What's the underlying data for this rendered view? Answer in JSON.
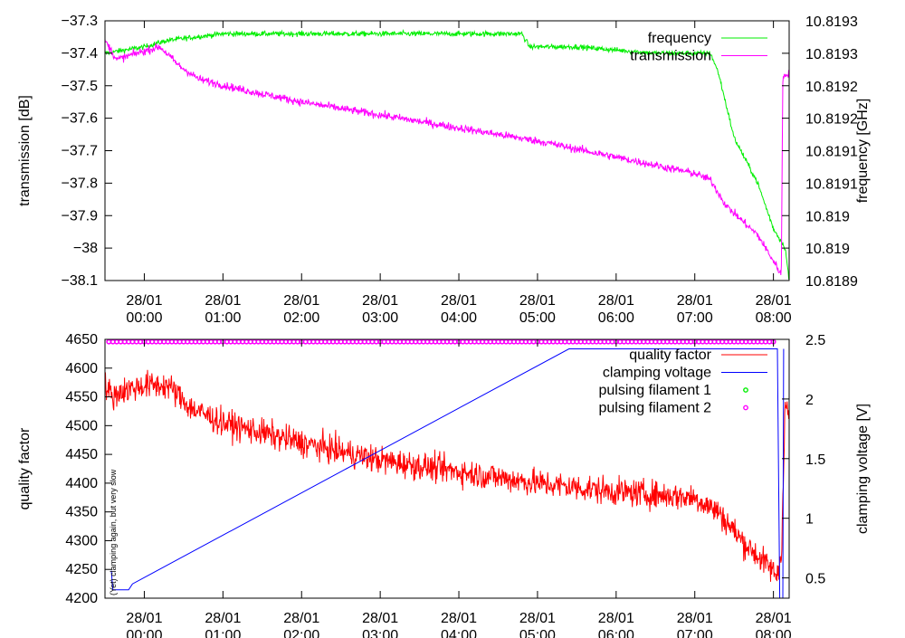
{
  "chart_data": [
    {
      "type": "line",
      "ylabel": "transmission [dB]",
      "y2label": "frequency [GHz]",
      "ylim": [
        -38.1,
        -37.3
      ],
      "y2lim": [
        10.8189,
        10.8193
      ],
      "xlim_hours": [
        -0.5,
        8.2
      ],
      "yticks": [
        {
          "v": -37.3,
          "label": "−37.3"
        },
        {
          "v": -37.4,
          "label": "−37.4"
        },
        {
          "v": -37.5,
          "label": "−37.5"
        },
        {
          "v": -37.6,
          "label": "−37.6"
        },
        {
          "v": -37.7,
          "label": "−37.7"
        },
        {
          "v": -37.8,
          "label": "−37.8"
        },
        {
          "v": -37.9,
          "label": "−37.9"
        },
        {
          "v": -38.0,
          "label": "−38"
        },
        {
          "v": -38.1,
          "label": "−38.1"
        }
      ],
      "y2ticks": [
        {
          "v": 10.8193,
          "label": "10.8193"
        },
        {
          "v": 10.81925,
          "label": "10.8193"
        },
        {
          "v": 10.8192,
          "label": "10.8192"
        },
        {
          "v": 10.81915,
          "label": "10.8192"
        },
        {
          "v": 10.8191,
          "label": "10.8191"
        },
        {
          "v": 10.81905,
          "label": "10.8191"
        },
        {
          "v": 10.819,
          "label": "10.819"
        },
        {
          "v": 10.81895,
          "label": "10.819"
        },
        {
          "v": 10.8189,
          "label": "10.8189"
        }
      ],
      "xticks": [
        {
          "h": 0,
          "date": "28/01",
          "time": "00:00"
        },
        {
          "h": 1,
          "date": "28/01",
          "time": "01:00"
        },
        {
          "h": 2,
          "date": "28/01",
          "time": "02:00"
        },
        {
          "h": 3,
          "date": "28/01",
          "time": "03:00"
        },
        {
          "h": 4,
          "date": "28/01",
          "time": "04:00"
        },
        {
          "h": 5,
          "date": "28/01",
          "time": "05:00"
        },
        {
          "h": 6,
          "date": "28/01",
          "time": "06:00"
        },
        {
          "h": 7,
          "date": "28/01",
          "time": "07:00"
        },
        {
          "h": 8,
          "date": "28/01",
          "time": "08:00"
        }
      ],
      "series": [
        {
          "name": "frequency",
          "axis": "right",
          "color": "#00ee00",
          "noise": 2e-06,
          "points": [
            [
              -0.5,
              10.81925
            ],
            [
              0,
              10.81926
            ],
            [
              0.3,
              10.81927
            ],
            [
              1,
              10.81928
            ],
            [
              2,
              10.81928
            ],
            [
              3,
              10.81928
            ],
            [
              4,
              10.81928
            ],
            [
              4.8,
              10.81928
            ],
            [
              4.9,
              10.81926
            ],
            [
              5.5,
              10.81926
            ],
            [
              6.5,
              10.81925
            ],
            [
              7.2,
              10.81925
            ],
            [
              7.3,
              10.81922
            ],
            [
              7.5,
              10.81912
            ],
            [
              7.8,
              10.81905
            ],
            [
              8.0,
              10.81898
            ],
            [
              8.15,
              10.81895
            ],
            [
              8.2,
              10.8189
            ]
          ]
        },
        {
          "name": "transmission",
          "axis": "left",
          "color": "#ff00ff",
          "noise": 0.006,
          "points": [
            [
              -0.5,
              -37.36
            ],
            [
              -0.35,
              -37.42
            ],
            [
              -0.1,
              -37.4
            ],
            [
              0.2,
              -37.38
            ],
            [
              0.45,
              -37.44
            ],
            [
              0.7,
              -37.48
            ],
            [
              1.2,
              -37.51
            ],
            [
              2,
              -37.55
            ],
            [
              3,
              -37.59
            ],
            [
              4,
              -37.63
            ],
            [
              5,
              -37.67
            ],
            [
              6,
              -37.72
            ],
            [
              7,
              -37.77
            ],
            [
              7.2,
              -37.79
            ],
            [
              7.4,
              -37.87
            ],
            [
              7.8,
              -37.96
            ],
            [
              8.1,
              -38.08
            ],
            [
              8.12,
              -37.47
            ],
            [
              8.2,
              -37.46
            ]
          ]
        }
      ]
    },
    {
      "type": "line",
      "ylabel": "quality factor",
      "y2label": "clamping voltage [V]",
      "ylim": [
        4200,
        4650
      ],
      "y2lim": [
        0.33,
        2.5
      ],
      "xlim_hours": [
        -0.5,
        8.2
      ],
      "yticks": [
        {
          "v": 4650,
          "label": "4650"
        },
        {
          "v": 4600,
          "label": "4600"
        },
        {
          "v": 4550,
          "label": "4550"
        },
        {
          "v": 4500,
          "label": "4500"
        },
        {
          "v": 4450,
          "label": "4450"
        },
        {
          "v": 4400,
          "label": "4400"
        },
        {
          "v": 4350,
          "label": "4350"
        },
        {
          "v": 4300,
          "label": "4300"
        },
        {
          "v": 4250,
          "label": "4250"
        },
        {
          "v": 4200,
          "label": "4200"
        }
      ],
      "y2ticks": [
        {
          "v": 2.5,
          "label": "2.5"
        },
        {
          "v": 2.0,
          "label": "2"
        },
        {
          "v": 1.5,
          "label": "1.5"
        },
        {
          "v": 1.0,
          "label": "1"
        },
        {
          "v": 0.5,
          "label": "0.5"
        }
      ],
      "xticks": [
        {
          "h": 0,
          "date": "28/01",
          "time": "00:00"
        },
        {
          "h": 1,
          "date": "28/01",
          "time": "01:00"
        },
        {
          "h": 2,
          "date": "28/01",
          "time": "02:00"
        },
        {
          "h": 3,
          "date": "28/01",
          "time": "03:00"
        },
        {
          "h": 4,
          "date": "28/01",
          "time": "04:00"
        },
        {
          "h": 5,
          "date": "28/01",
          "time": "05:00"
        },
        {
          "h": 6,
          "date": "28/01",
          "time": "06:00"
        },
        {
          "h": 7,
          "date": "28/01",
          "time": "07:00"
        },
        {
          "h": 8,
          "date": "28/01",
          "time": "08:00"
        }
      ],
      "series": [
        {
          "name": "quality factor",
          "axis": "left",
          "color": "#ff0000",
          "noise": 12,
          "points": [
            [
              -0.5,
              4570
            ],
            [
              -0.4,
              4550
            ],
            [
              -0.3,
              4560
            ],
            [
              0,
              4570
            ],
            [
              0.3,
              4570
            ],
            [
              0.6,
              4530
            ],
            [
              1,
              4505
            ],
            [
              2,
              4470
            ],
            [
              3,
              4440
            ],
            [
              4,
              4420
            ],
            [
              5,
              4400
            ],
            [
              6,
              4385
            ],
            [
              7,
              4375
            ],
            [
              7.3,
              4350
            ],
            [
              7.6,
              4300
            ],
            [
              7.9,
              4260
            ],
            [
              8.05,
              4240
            ],
            [
              8.1,
              4275
            ],
            [
              8.15,
              4540
            ],
            [
              8.2,
              4510
            ]
          ]
        },
        {
          "name": "clamping voltage",
          "axis": "right",
          "color": "#0000ff",
          "noise": 0,
          "points": [
            [
              -0.42,
              0.56
            ],
            [
              -0.4,
              0.4
            ],
            [
              -0.2,
              0.4
            ],
            [
              -0.15,
              0.45
            ],
            [
              5.4,
              2.42
            ],
            [
              8.05,
              2.42
            ],
            [
              8.08,
              0.33
            ],
            [
              8.12,
              0.33
            ],
            [
              8.13,
              2.42
            ]
          ]
        },
        {
          "name": "pulsing filament 1",
          "axis": "right",
          "color": "#00ee00",
          "marker": "circle",
          "points": []
        },
        {
          "name": "pulsing filament 2",
          "axis": "right",
          "color": "#ff00ff",
          "marker": "circle",
          "y": 2.48,
          "x_start": -0.45,
          "x_end": 8.02,
          "x_step": 0.05
        }
      ],
      "annotation": "(Yet) clamping again, but very slow"
    }
  ]
}
